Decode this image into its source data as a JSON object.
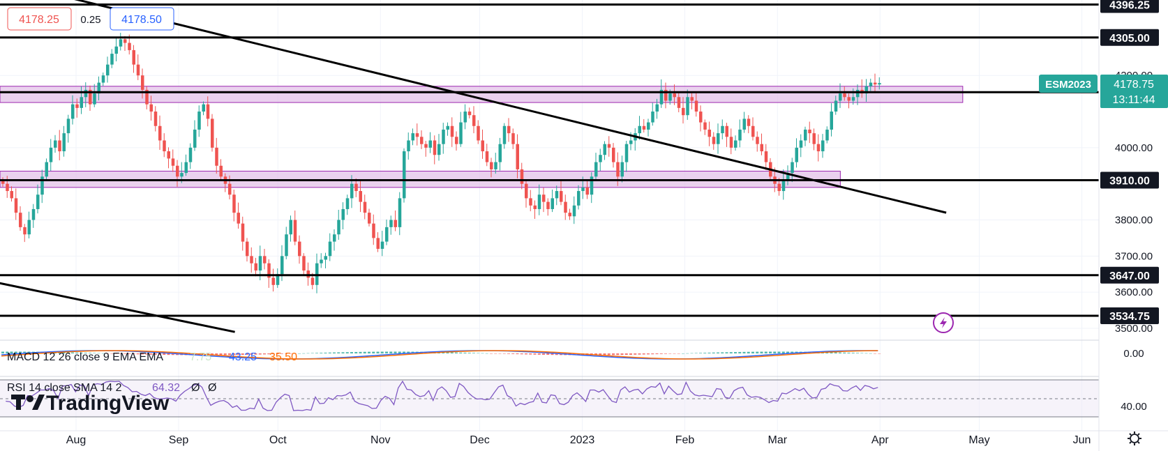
{
  "symbol": "ESM2023",
  "header": {
    "bid": "4178.25",
    "spread": "0.25",
    "ask": "4178.50"
  },
  "price_badge": {
    "symbol": "ESM2023",
    "price": "4178.75",
    "countdown": "13:11:44"
  },
  "watermark": "TradingView",
  "colors": {
    "up": "#26a69a",
    "down": "#ef5350",
    "zone_fill": "#e1bee7",
    "zone_border": "#9c27b0",
    "line": "#000000",
    "macd": "#2962ff",
    "signal": "#ff6d00",
    "rsi": "#7e57c2",
    "badge": "#26a69a"
  },
  "chart_data": [
    {
      "type": "candlestick",
      "y_ticks": [
        "3500.00",
        "3600.00",
        "3700.00",
        "3800.00",
        "4000.00",
        "4200.00"
      ],
      "months": [
        "Aug",
        "Sep",
        "Oct",
        "Nov",
        "Dec",
        "2023",
        "Feb",
        "Mar",
        "Apr",
        "May",
        "Jun"
      ],
      "levels": [
        "4396.25",
        "4305.00",
        "4153.50",
        "3910.00",
        "3647.00",
        "3534.75"
      ],
      "zones": [
        {
          "low": 4125,
          "high": 4170,
          "from": "2022-07-01",
          "to": "2023-04-26"
        },
        {
          "low": 3890,
          "high": 3935,
          "from": "2022-07-01",
          "to": "2023-03-20"
        }
      ],
      "trendlines": [
        {
          "from": [
            "2022-07-01",
            4480
          ],
          "to": [
            "2023-04-21",
            3820
          ]
        },
        {
          "from": [
            "2022-07-01",
            3640
          ],
          "to": [
            "2022-09-18",
            3490
          ]
        }
      ],
      "series": [
        {
          "close": [
            3900,
            3880,
            3860,
            3820,
            3780,
            3760,
            3800,
            3830,
            3870,
            3920,
            3960,
            4000,
            4020,
            3990,
            4040,
            4080,
            4120,
            4110,
            4140,
            4160,
            4120,
            4150,
            4180,
            4200,
            4230,
            4260,
            4280,
            4300,
            4290,
            4270,
            4230,
            4200,
            4160,
            4120,
            4100,
            4060,
            4020,
            3990,
            3970,
            3950,
            3920,
            3930,
            3960,
            4000,
            4050,
            4100,
            4120,
            4080,
            4000,
            3950,
            3920,
            3900,
            3870,
            3820,
            3790,
            3740,
            3700,
            3680,
            3660,
            3700,
            3680,
            3640,
            3620,
            3650,
            3700,
            3760,
            3800,
            3740,
            3700,
            3660,
            3640,
            3620,
            3680,
            3690,
            3700,
            3740,
            3760,
            3800,
            3830,
            3860,
            3900,
            3880,
            3850,
            3820,
            3790,
            3750,
            3720,
            3740,
            3780,
            3800,
            3780,
            3860,
            3990,
            4020,
            4040,
            4030,
            4010,
            4000,
            4020,
            3980,
            4010,
            4050,
            4060,
            4030,
            4010,
            4070,
            4100,
            4090,
            4060,
            4020,
            3990,
            3960,
            3940,
            3960,
            4010,
            4060,
            4040,
            4010,
            3940,
            3900,
            3860,
            3840,
            3830,
            3870,
            3850,
            3830,
            3860,
            3880,
            3850,
            3820,
            3810,
            3840,
            3880,
            3890,
            3870,
            3920,
            3960,
            3980,
            4010,
            4000,
            3960,
            3920,
            3960,
            4010,
            4020,
            4040,
            4060,
            4050,
            4070,
            4100,
            4120,
            4160,
            4130,
            4150,
            4140,
            4110,
            4090,
            4140,
            4130,
            4100,
            4070,
            4050,
            4030,
            4010,
            4040,
            4060,
            4030,
            4000,
            4020,
            4050,
            4080,
            4060,
            4030,
            4010,
            3990,
            3960,
            3920,
            3900,
            3880,
            3910,
            3930,
            3960,
            4000,
            4020,
            4050,
            4040,
            4010,
            3990,
            4020,
            4050,
            4100,
            4130,
            4150,
            4140,
            4130,
            4140,
            4160,
            4150,
            4170,
            4180,
            4175,
            4178.75
          ]
        }
      ]
    },
    {
      "type": "line",
      "name": "MACD 12 26 close 9 EMA EMA",
      "values": [
        "7.75",
        "43.25",
        "35.50"
      ],
      "zero_label": "0.00"
    },
    {
      "type": "line",
      "name": "RSI 14 close SMA 14 2",
      "values": [
        "64.32",
        "Ø",
        "Ø"
      ],
      "level_label": "40.00"
    }
  ]
}
